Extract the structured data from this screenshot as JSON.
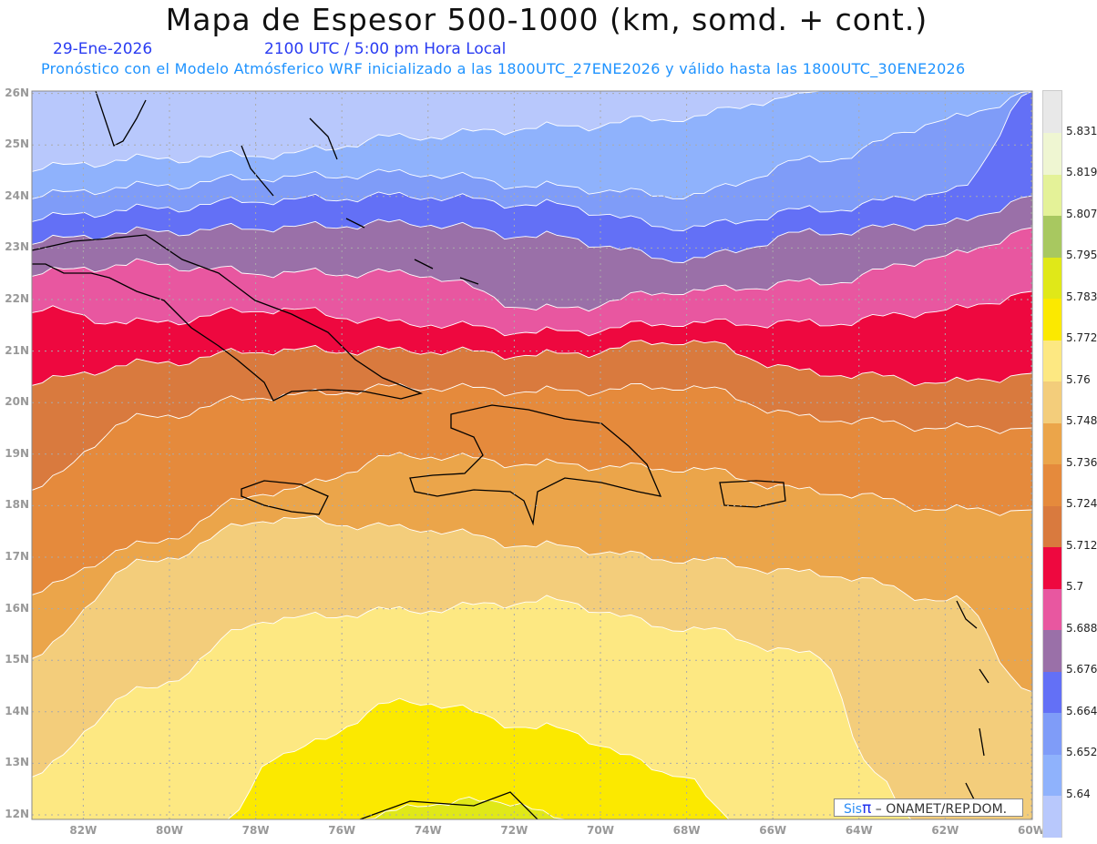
{
  "title": "Mapa de Espesor 500-1000 (km, somd. + cont.)",
  "date": "29-Ene-2026",
  "time": "2100 UTC / 5:00 pm Hora Local",
  "forecast_note": "Pronóstico con el Modelo Atmósferico WRF inicializado a las 1800UTC_27ENE2026 y válido hasta las  1800UTC_30ENE2026",
  "lat_labels": [
    "12N",
    "13N",
    "14N",
    "15N",
    "16N",
    "17N",
    "18N",
    "19N",
    "20N",
    "21N",
    "22N",
    "23N",
    "24N",
    "25N",
    "26N"
  ],
  "lon_labels": [
    "82W",
    "80W",
    "78W",
    "76W",
    "74W",
    "72W",
    "70W",
    "68W",
    "66W",
    "64W",
    "62W",
    "60W"
  ],
  "colorbar": {
    "labels": [
      "5.64",
      "5.652",
      "5.664",
      "5.676",
      "5.688",
      "5.7",
      "5.712",
      "5.724",
      "5.736",
      "5.748",
      "5.76",
      "5.772",
      "5.783",
      "5.795",
      "5.807",
      "5.819",
      "5.831"
    ],
    "colors": [
      "#b8c8fc",
      "#8fb2fc",
      "#7f9cf8",
      "#6370f6",
      "#9a70a8",
      "#e857a0",
      "#ee083f",
      "#d97a3e",
      "#e58a3c",
      "#eba54a",
      "#f3cd7b",
      "#fde882",
      "#fbe900",
      "#e0e818",
      "#a8c860",
      "#e4f298",
      "#eff6d2",
      "#e8e8e8"
    ]
  },
  "credit": {
    "sis": "Sis",
    "pi": "π",
    "rest": " –  ONAMET/REP.DOM."
  }
}
